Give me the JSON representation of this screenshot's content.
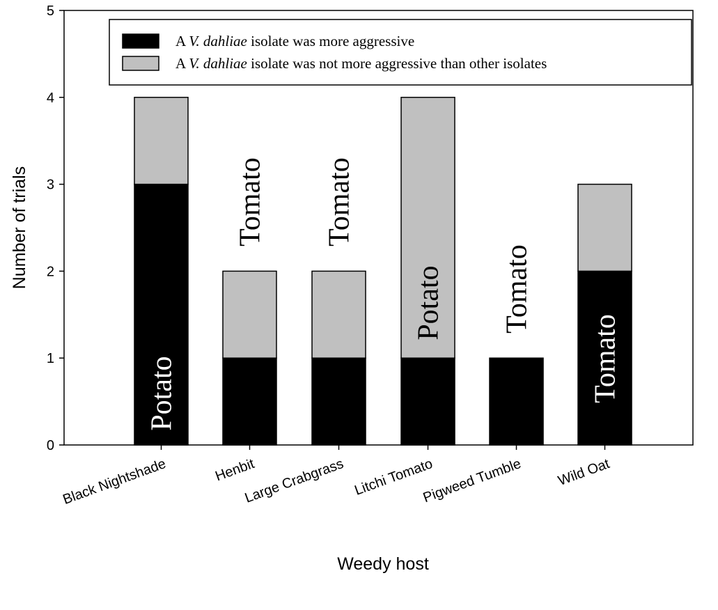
{
  "chart_data": {
    "type": "bar",
    "stacked": true,
    "title": "",
    "xlabel": "Weedy host",
    "ylabel": "Number of trials",
    "ylim": [
      0,
      5
    ],
    "yticks": [
      "0",
      "1",
      "2",
      "3",
      "4",
      "5"
    ],
    "grid": false,
    "categories": [
      "Black Nightshade",
      "Henbit",
      "Large Crabgrass",
      "Litchi Tomato",
      "Pigweed Tumble",
      "Wild Oat"
    ],
    "series": [
      {
        "name": "A V. dahliae isolate was more aggressive",
        "color": "#000000",
        "values": [
          3,
          1,
          1,
          1,
          1,
          2
        ]
      },
      {
        "name": "A V. dahliae isolate was not more aggressive than other isolates",
        "color": "#c0c0c0",
        "values": [
          1,
          1,
          1,
          3,
          0,
          1
        ]
      }
    ],
    "legend": {
      "placement": "top",
      "prefix": "A ",
      "species": "V. dahliae",
      "items": [
        " isolate was more aggressive",
        " isolate was not more aggressive than other isolates"
      ]
    },
    "annotations": [
      "Potato",
      "Tomato",
      "Tomato",
      "Potato",
      "Tomato",
      "Tomato"
    ]
  }
}
